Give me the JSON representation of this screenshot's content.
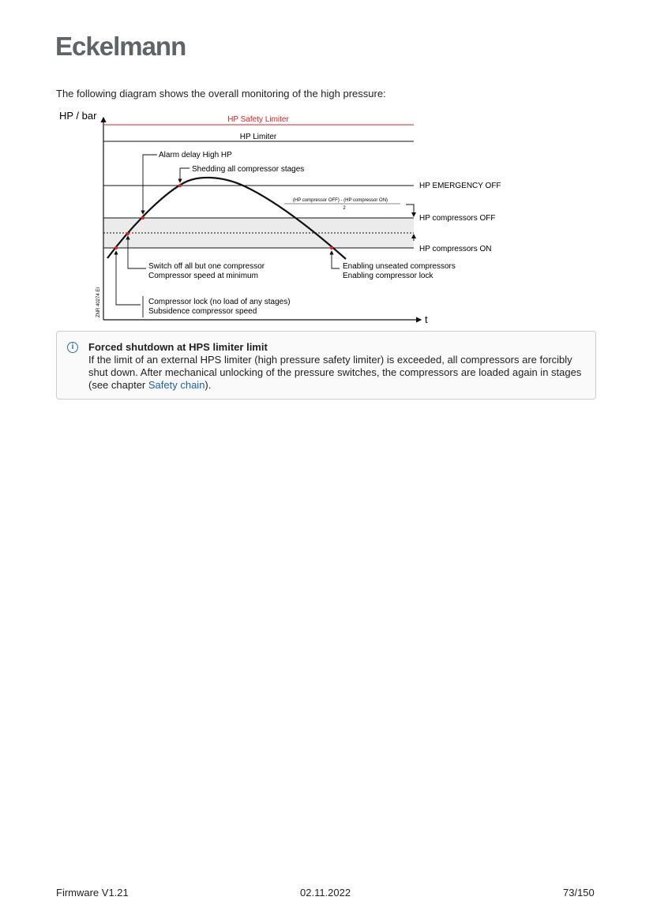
{
  "header": {
    "logo": "Eckelmann"
  },
  "intro": "The following diagram shows the overall monitoring of the high pressure:",
  "diagram": {
    "y_axis": "HP / bar",
    "x_axis": "t",
    "lines": {
      "safety": "HP Safety Limiter",
      "limiter": "HP Limiter",
      "emergency": "HP EMERGENCY OFF",
      "off": "HP compressors OFF",
      "on": "HP compressors ON"
    },
    "formula_num": "(HP compressor OFF) - (HP compressor ON)",
    "formula_den": "2",
    "callouts": {
      "alarm": "Alarm delay High HP",
      "shedding": "Shedding all compressor stages",
      "switch1": "Switch off all but one compressor",
      "switch2": "Compressor speed at minimum",
      "lock1": "Compressor lock (no load of any stages)",
      "lock2": "Subsidence compressor speed",
      "enable1": "Enabling unseated compressors",
      "enable2": "Enabling compressor lock"
    },
    "code": "ZNR 40274 EI",
    "colors": {
      "safety": "#e02020",
      "band": "#ebebeb",
      "marker": "#e02020"
    }
  },
  "note": {
    "icon": "info-icon",
    "title": "Forced shutdown at HPS limiter limit",
    "body": "If the limit of an external HPS limiter (high pressure safety limiter) is exceeded, all compressors are forcibly shut down. After mechanical unlocking of the pressure switches, the compressors are loaded again in stages (see chapter ",
    "link": "Safety chain",
    "body_end": ")."
  },
  "footer": {
    "left": "Firmware V1.21",
    "center": "02.11.2022",
    "right": "73/150"
  }
}
